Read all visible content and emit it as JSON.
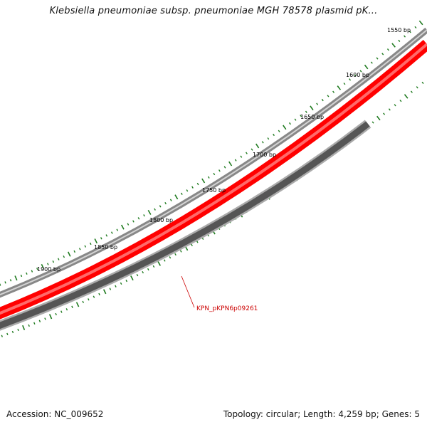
{
  "header": {
    "title": "Klebsiella pneumoniae subsp. pneumoniae MGH 78578 plasmid pK..."
  },
  "footer": {
    "accession": "Accession: NC_009652",
    "summary": "Topology: circular; Length: 4,259 bp; Genes: 5"
  },
  "colors": {
    "gene_forward": "#ff0000",
    "gene_reverse": "#555555",
    "backbone": "#888888",
    "tick": "#1e7a1e",
    "gene_label": "#cc0000"
  },
  "ticks": [
    {
      "bp": 1550,
      "label": "1550 bp"
    },
    {
      "bp": 1600,
      "label": "1600 bp"
    },
    {
      "bp": 1650,
      "label": "1650 bp"
    },
    {
      "bp": 1700,
      "label": "1700 bp"
    },
    {
      "bp": 1750,
      "label": "1750 bp"
    },
    {
      "bp": 1800,
      "label": "1800 bp"
    },
    {
      "bp": 1850,
      "label": "1850 bp"
    },
    {
      "bp": 1900,
      "label": "1900 bp"
    }
  ],
  "genes": [
    {
      "name": "KPN_pKPN6p09261",
      "strand": "reverse"
    }
  ]
}
